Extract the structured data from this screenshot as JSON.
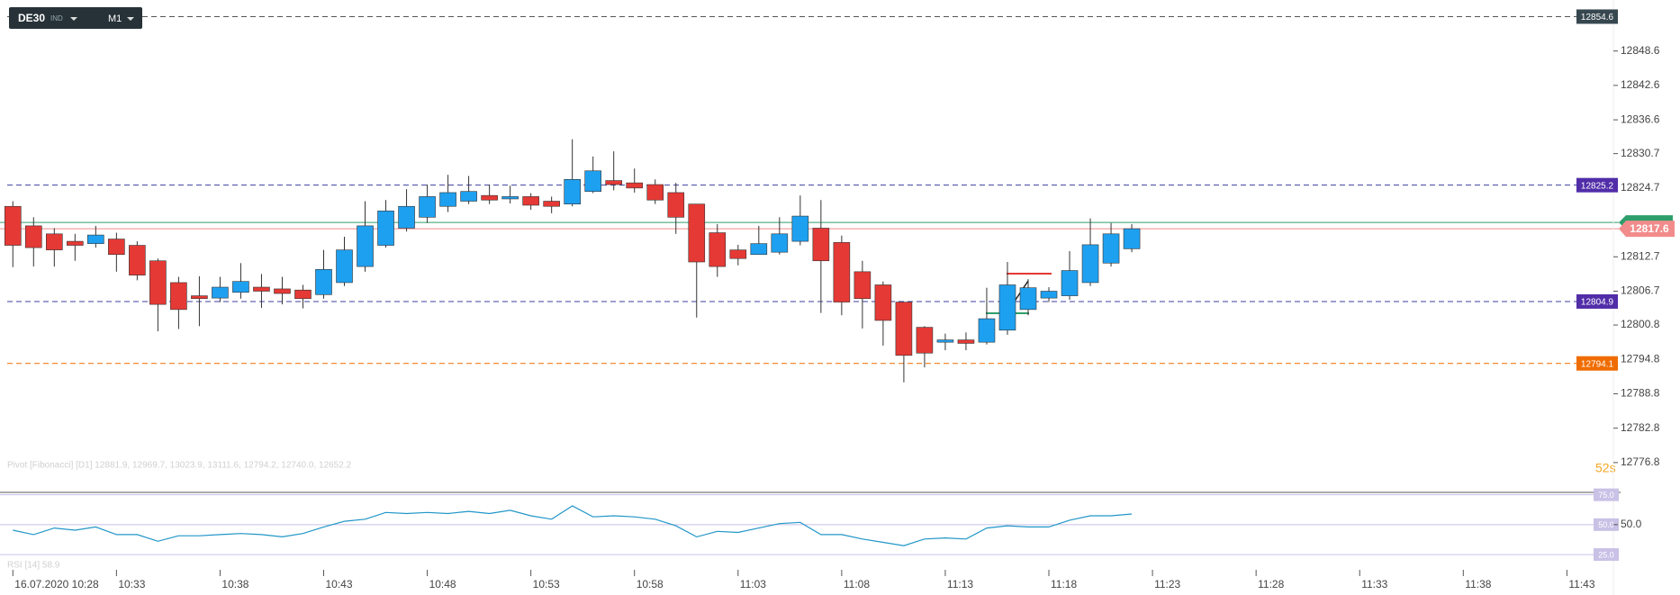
{
  "chart_data": {
    "type": "candlestick",
    "symbol": "DE30",
    "market": "IND",
    "interval": "M1",
    "up_color": "#1ea0f0",
    "down_color": "#e53935",
    "ylim": [
      12771.6,
      12857.5
    ],
    "yticks": [
      12848.6,
      12842.6,
      12836.6,
      12830.7,
      12824.7,
      12812.7,
      12806.7,
      12800.8,
      12794.8,
      12788.8,
      12782.8,
      12776.8
    ],
    "xticks": [
      "16.07.2020 10:28",
      "10:33",
      "10:38",
      "10:43",
      "10:48",
      "10:53",
      "10:58",
      "11:03",
      "11:08",
      "11:13",
      "11:18",
      "11:23",
      "11:28",
      "11:33",
      "11:38",
      "11:43"
    ],
    "open": [
      12821.5,
      12818.1,
      12816.7,
      12815.4,
      12815.0,
      12815.8,
      12814.7,
      12812.0,
      12808.2,
      12805.9,
      12805.5,
      12806.5,
      12807.4,
      12807.1,
      12806.9,
      12806.1,
      12808.2,
      12811.0,
      12814.7,
      12817.7,
      12819.6,
      12821.5,
      12822.4,
      12823.4,
      12822.8,
      12823.2,
      12822.4,
      12821.9,
      12824.1,
      12826.0,
      12825.6,
      12825.3,
      12823.9,
      12821.9,
      12816.9,
      12813.9,
      12813.1,
      12813.5,
      12815.4,
      12817.7,
      12815.2,
      12810.1,
      12807.8,
      12804.8,
      12800.4,
      12797.8,
      12798.2,
      12797.8,
      12799.9,
      12803.5,
      12805.5,
      12805.9,
      12808.2,
      12811.6,
      12814.1
    ],
    "high": [
      12822.4,
      12819.6,
      12817.7,
      12816.7,
      12818.1,
      12816.9,
      12815.4,
      12812.4,
      12809.2,
      12809.3,
      12809.2,
      12811.6,
      12809.7,
      12809.2,
      12807.8,
      12813.9,
      12816.2,
      12822.4,
      12822.6,
      12824.5,
      12825.3,
      12827.0,
      12826.8,
      12825.3,
      12825.1,
      12823.8,
      12823.2,
      12833.2,
      12830.2,
      12831.1,
      12828.1,
      12826.2,
      12825.6,
      12821.9,
      12818.4,
      12814.8,
      12818.1,
      12819.6,
      12823.4,
      12822.6,
      12816.4,
      12812.0,
      12808.4,
      12804.8,
      12800.6,
      12799.3,
      12799.5,
      12807.3,
      12811.8,
      12808.8,
      12807.4,
      12813.7,
      12819.4,
      12818.6,
      12818.4
    ],
    "low": [
      12810.9,
      12811.0,
      12811.0,
      12812.0,
      12814.3,
      12810.1,
      12808.6,
      12799.7,
      12800.1,
      12800.6,
      12804.8,
      12805.4,
      12803.8,
      12804.4,
      12803.7,
      12805.4,
      12807.6,
      12810.1,
      12814.3,
      12817.1,
      12818.6,
      12820.5,
      12821.9,
      12821.9,
      12822.0,
      12820.9,
      12820.3,
      12821.5,
      12823.8,
      12824.3,
      12823.9,
      12821.9,
      12816.7,
      12802.1,
      12809.2,
      12811.2,
      12813.1,
      12813.1,
      12814.7,
      12802.9,
      12802.5,
      12800.2,
      12797.2,
      12790.8,
      12793.4,
      12796.4,
      12796.4,
      12797.4,
      12799.1,
      12802.5,
      12804.8,
      12805.2,
      12807.6,
      12811.0,
      12813.5
    ],
    "close": [
      12814.7,
      12814.3,
      12813.9,
      12814.7,
      12816.5,
      12813.1,
      12809.5,
      12804.4,
      12803.5,
      12805.4,
      12807.4,
      12808.4,
      12806.7,
      12806.3,
      12805.4,
      12810.5,
      12813.9,
      12818.1,
      12820.7,
      12821.5,
      12823.2,
      12823.9,
      12824.1,
      12822.6,
      12823.2,
      12821.7,
      12821.5,
      12826.2,
      12827.7,
      12825.3,
      12824.7,
      12822.6,
      12819.6,
      12811.8,
      12811.0,
      12812.4,
      12815.0,
      12816.7,
      12819.8,
      12812.0,
      12804.8,
      12805.4,
      12801.6,
      12795.5,
      12795.9,
      12798.2,
      12797.6,
      12801.9,
      12807.8,
      12807.3,
      12806.7,
      12810.3,
      12814.8,
      12816.7,
      12817.6
    ],
    "levels": [
      {
        "value": 12854.6,
        "label": "12854.6",
        "color": "#37474f",
        "line": "#555555"
      },
      {
        "value": 12825.2,
        "label": "12825.2",
        "color": "#512da8",
        "line": "#3f3f9f"
      },
      {
        "value": 12804.9,
        "label": "12804.9",
        "color": "#512da8",
        "line": "#3f3f9f"
      },
      {
        "value": 12794.1,
        "label": "12794.1",
        "color": "#ef6c00",
        "line": "#ef6c00"
      }
    ],
    "green_level": {
      "value": 12818.7,
      "color": "#2e9e6b"
    },
    "price": {
      "value": 12817.6,
      "label": "12817.6",
      "color": "#f28b8b"
    },
    "pivot_legend": "Pivot [Fibonacci]  [D1]  12881.9,  12969.7,  13023.9,  13111.6,  12794.2,  12740.0,  12652.2",
    "countdown": "52s",
    "rsi": {
      "title": "RSI [14]  58.9",
      "color": "#2196c8",
      "ylim": [
        13,
        77
      ],
      "levels": [
        {
          "value": 75,
          "label": "75.0"
        },
        {
          "value": 50,
          "label": "50.0"
        },
        {
          "value": 25,
          "label": "25.0"
        }
      ],
      "axis_label": {
        "value": 50,
        "label": "50.0"
      },
      "values": [
        45.4,
        41.7,
        47.2,
        45.4,
        48.1,
        41.7,
        41.7,
        36.1,
        40.7,
        40.7,
        41.7,
        42.6,
        41.7,
        39.8,
        42.6,
        48.1,
        52.8,
        54.6,
        60.2,
        59.3,
        60.2,
        59.3,
        61.1,
        59.3,
        62.0,
        57.4,
        54.6,
        65.7,
        56.5,
        57.4,
        56.5,
        54.6,
        49.1,
        39.8,
        44.4,
        43.5,
        47.2,
        50.9,
        51.9,
        41.7,
        41.7,
        38.0,
        35.2,
        32.4,
        38.0,
        38.9,
        38.0,
        47.2,
        49.1,
        48.1,
        48.1,
        53.7,
        57.4,
        57.4,
        58.9
      ]
    }
  }
}
